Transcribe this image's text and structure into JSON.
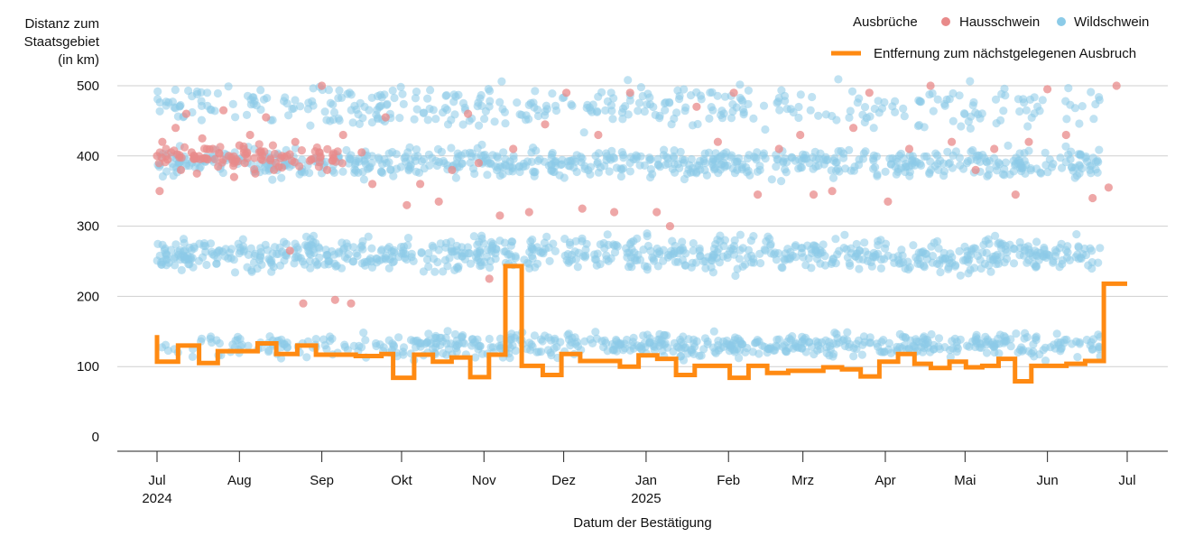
{
  "chart_data": {
    "type": "scatter",
    "ylabel": [
      "Distanz zum",
      "Staatsgebiet",
      "(in km)"
    ],
    "xlabel": "Datum der Bestätigung",
    "x_range": [
      "2024-07-01",
      "2025-07-01"
    ],
    "ylim": [
      0,
      520
    ],
    "y_ticks": [
      0,
      100,
      200,
      300,
      400,
      500
    ],
    "x_ticks": [
      {
        "date": "2024-07-01",
        "label": "Jul",
        "year": "2024"
      },
      {
        "date": "2024-08-01",
        "label": "Aug",
        "year": ""
      },
      {
        "date": "2024-09-01",
        "label": "Sep",
        "year": ""
      },
      {
        "date": "2024-10-01",
        "label": "Okt",
        "year": ""
      },
      {
        "date": "2024-11-01",
        "label": "Nov",
        "year": ""
      },
      {
        "date": "2024-12-01",
        "label": "Dez",
        "year": ""
      },
      {
        "date": "2025-01-01",
        "label": "Jan",
        "year": "2025"
      },
      {
        "date": "2025-02-01",
        "label": "Feb",
        "year": ""
      },
      {
        "date": "2025-03-01",
        "label": "Mrz",
        "year": ""
      },
      {
        "date": "2025-04-01",
        "label": "Apr",
        "year": ""
      },
      {
        "date": "2025-05-01",
        "label": "Mai",
        "year": ""
      },
      {
        "date": "2025-06-01",
        "label": "Jun",
        "year": ""
      },
      {
        "date": "2025-07-01",
        "label": "Jul",
        "year": ""
      }
    ],
    "grid": "horizontal",
    "legend": {
      "title": "Ausbrüche",
      "placement": "top-right",
      "items": [
        {
          "name": "Hausschwein",
          "color": "#e88a8a",
          "shape": "dot"
        },
        {
          "name": "Wildschwein",
          "color": "#8ccbe8",
          "shape": "dot"
        },
        {
          "name": "Entfernung zum nächstgelegenen Ausbruch",
          "color": "#ff8a12",
          "shape": "line"
        }
      ]
    },
    "series": [
      {
        "name": "Hausschwein",
        "type": "scatter",
        "color": "#e88a8a",
        "points": [
          {
            "x": "2024-07-01",
            "y": 400
          },
          {
            "x": "2024-07-02",
            "y": 350
          },
          {
            "x": "2024-07-03",
            "y": 420
          },
          {
            "x": "2024-07-05",
            "y": 395
          },
          {
            "x": "2024-07-08",
            "y": 440
          },
          {
            "x": "2024-07-10",
            "y": 380
          },
          {
            "x": "2024-07-12",
            "y": 460
          },
          {
            "x": "2024-07-14",
            "y": 405
          },
          {
            "x": "2024-07-16",
            "y": 375
          },
          {
            "x": "2024-07-18",
            "y": 425
          },
          {
            "x": "2024-07-20",
            "y": 395
          },
          {
            "x": "2024-07-22",
            "y": 410
          },
          {
            "x": "2024-07-24",
            "y": 385
          },
          {
            "x": "2024-07-26",
            "y": 465
          },
          {
            "x": "2024-07-28",
            "y": 400
          },
          {
            "x": "2024-07-30",
            "y": 370
          },
          {
            "x": "2024-08-01",
            "y": 415
          },
          {
            "x": "2024-08-03",
            "y": 390
          },
          {
            "x": "2024-08-05",
            "y": 430
          },
          {
            "x": "2024-08-07",
            "y": 375
          },
          {
            "x": "2024-08-09",
            "y": 405
          },
          {
            "x": "2024-08-11",
            "y": 455
          },
          {
            "x": "2024-08-14",
            "y": 380
          },
          {
            "x": "2024-08-17",
            "y": 400
          },
          {
            "x": "2024-08-20",
            "y": 265
          },
          {
            "x": "2024-08-22",
            "y": 420
          },
          {
            "x": "2024-08-25",
            "y": 190
          },
          {
            "x": "2024-08-28",
            "y": 395
          },
          {
            "x": "2024-09-01",
            "y": 500
          },
          {
            "x": "2024-09-03",
            "y": 380
          },
          {
            "x": "2024-09-06",
            "y": 195
          },
          {
            "x": "2024-09-09",
            "y": 430
          },
          {
            "x": "2024-09-12",
            "y": 190
          },
          {
            "x": "2024-09-16",
            "y": 405
          },
          {
            "x": "2024-09-20",
            "y": 360
          },
          {
            "x": "2024-09-25",
            "y": 455
          },
          {
            "x": "2024-10-03",
            "y": 330
          },
          {
            "x": "2024-10-08",
            "y": 360
          },
          {
            "x": "2024-10-15",
            "y": 335
          },
          {
            "x": "2024-10-20",
            "y": 380
          },
          {
            "x": "2024-10-26",
            "y": 460
          },
          {
            "x": "2024-10-30",
            "y": 390
          },
          {
            "x": "2024-11-03",
            "y": 225
          },
          {
            "x": "2024-11-07",
            "y": 315
          },
          {
            "x": "2024-11-12",
            "y": 410
          },
          {
            "x": "2024-11-18",
            "y": 320
          },
          {
            "x": "2024-11-24",
            "y": 445
          },
          {
            "x": "2024-12-02",
            "y": 490
          },
          {
            "x": "2024-12-08",
            "y": 325
          },
          {
            "x": "2024-12-14",
            "y": 430
          },
          {
            "x": "2024-12-20",
            "y": 320
          },
          {
            "x": "2024-12-26",
            "y": 490
          },
          {
            "x": "2025-01-05",
            "y": 320
          },
          {
            "x": "2025-01-10",
            "y": 300
          },
          {
            "x": "2025-01-20",
            "y": 470
          },
          {
            "x": "2025-01-28",
            "y": 420
          },
          {
            "x": "2025-02-03",
            "y": 490
          },
          {
            "x": "2025-02-12",
            "y": 345
          },
          {
            "x": "2025-02-20",
            "y": 410
          },
          {
            "x": "2025-02-28",
            "y": 430
          },
          {
            "x": "2025-03-05",
            "y": 345
          },
          {
            "x": "2025-03-12",
            "y": 350
          },
          {
            "x": "2025-03-20",
            "y": 440
          },
          {
            "x": "2025-03-26",
            "y": 490
          },
          {
            "x": "2025-04-02",
            "y": 335
          },
          {
            "x": "2025-04-10",
            "y": 410
          },
          {
            "x": "2025-04-18",
            "y": 500
          },
          {
            "x": "2025-04-26",
            "y": 420
          },
          {
            "x": "2025-05-05",
            "y": 380
          },
          {
            "x": "2025-05-12",
            "y": 410
          },
          {
            "x": "2025-05-20",
            "y": 345
          },
          {
            "x": "2025-05-25",
            "y": 420
          },
          {
            "x": "2025-06-01",
            "y": 495
          },
          {
            "x": "2025-06-08",
            "y": 430
          },
          {
            "x": "2025-06-18",
            "y": 340
          },
          {
            "x": "2025-06-24",
            "y": 355
          },
          {
            "x": "2025-06-27",
            "y": 500
          }
        ]
      },
      {
        "name": "Wildschwein",
        "type": "scatter",
        "color": "#8ccbe8",
        "bands": [
          {
            "y_center": 130,
            "y_spread": 25
          },
          {
            "y_center": 260,
            "y_spread": 35
          },
          {
            "y_center": 390,
            "y_spread": 30
          },
          {
            "y_center": 470,
            "y_spread": 45
          }
        ]
      },
      {
        "name": "Entfernung zum nächstgelegenen Ausbruch",
        "type": "line",
        "step": true,
        "color": "#ff8a12",
        "points": [
          {
            "x": "2024-07-01",
            "y": 145
          },
          {
            "x": "2024-07-02",
            "y": 107
          },
          {
            "x": "2024-07-10",
            "y": 130
          },
          {
            "x": "2024-07-19",
            "y": 105
          },
          {
            "x": "2024-07-27",
            "y": 122
          },
          {
            "x": "2024-08-13",
            "y": 133
          },
          {
            "x": "2024-08-21",
            "y": 118
          },
          {
            "x": "2024-08-30",
            "y": 130
          },
          {
            "x": "2024-09-07",
            "y": 117
          },
          {
            "x": "2024-09-24",
            "y": 115
          },
          {
            "x": "2024-10-05",
            "y": 118
          },
          {
            "x": "2024-10-10",
            "y": 105
          },
          {
            "x": "2024-10-15",
            "y": 84
          },
          {
            "x": "2024-10-22",
            "y": 117
          },
          {
            "x": "2024-11-01",
            "y": 107
          },
          {
            "x": "2024-11-09",
            "y": 113
          },
          {
            "x": "2024-11-17",
            "y": 85
          },
          {
            "x": "2024-11-23",
            "y": 117
          },
          {
            "x": "2024-11-03",
            "y": 243
          },
          {
            "x": "2024-11-07",
            "y": 243
          }
        ]
      }
    ]
  }
}
